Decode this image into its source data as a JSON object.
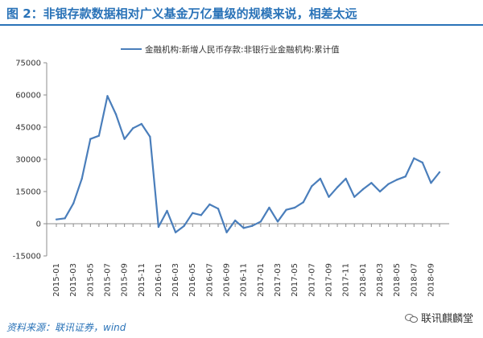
{
  "title": "图 2：非银存款数据相对广义基金万亿量级的规模来说，相差太远",
  "source": "资料来源：联讯证券，wind",
  "watermark": "联讯麒麟堂",
  "colors": {
    "accent": "#2a73b8",
    "series": "#4a7ebb"
  },
  "chart_data": {
    "type": "line",
    "legend": "top",
    "grid": false,
    "ylim": [
      -15000,
      75000
    ],
    "yticks": [
      75000,
      60000,
      45000,
      30000,
      15000,
      0,
      -15000
    ],
    "ytick_labels": [
      "75000",
      "60000",
      "45000",
      "30000",
      "15000",
      "0",
      "-15000"
    ],
    "x": [
      "2015-01",
      "2015-02",
      "2015-03",
      "2015-04",
      "2015-05",
      "2015-06",
      "2015-07",
      "2015-08",
      "2015-09",
      "2015-10",
      "2015-11",
      "2015-12",
      "2016-01",
      "2016-02",
      "2016-03",
      "2016-04",
      "2016-05",
      "2016-06",
      "2016-07",
      "2016-08",
      "2016-09",
      "2016-10",
      "2016-11",
      "2016-12",
      "2017-01",
      "2017-02",
      "2017-03",
      "2017-04",
      "2017-05",
      "2017-06",
      "2017-07",
      "2017-08",
      "2017-09",
      "2017-10",
      "2017-11",
      "2017-12",
      "2018-01",
      "2018-02",
      "2018-03",
      "2018-04",
      "2018-05",
      "2018-06",
      "2018-07",
      "2018-08",
      "2018-09",
      "2018-10"
    ],
    "xtick_labels": [
      "2015-01",
      "2015-03",
      "2015-05",
      "2015-07",
      "2015-09",
      "2015-11",
      "2016-01",
      "2016-03",
      "2016-05",
      "2016-07",
      "2016-09",
      "2016-11",
      "2017-01",
      "2017-03",
      "2017-05",
      "2017-07",
      "2017-09",
      "2017-11",
      "2018-01",
      "2018-03",
      "2018-05",
      "2018-07",
      "2018-09"
    ],
    "series": [
      {
        "name": "金融机构:新增人民币存款:非银行业金融机构:累计值",
        "values": [
          2000,
          2500,
          9500,
          21000,
          39500,
          41000,
          59500,
          51000,
          39500,
          44500,
          46500,
          40500,
          -1500,
          6000,
          -4000,
          -1000,
          5000,
          4000,
          9000,
          7000,
          -4000,
          1500,
          -2000,
          -1000,
          1000,
          7500,
          1000,
          6500,
          7500,
          10000,
          17500,
          21000,
          12500,
          17000,
          21000,
          12500,
          16000,
          19000,
          15000,
          18500,
          20500,
          22000,
          30500,
          28500,
          19000,
          24000
        ]
      }
    ]
  }
}
